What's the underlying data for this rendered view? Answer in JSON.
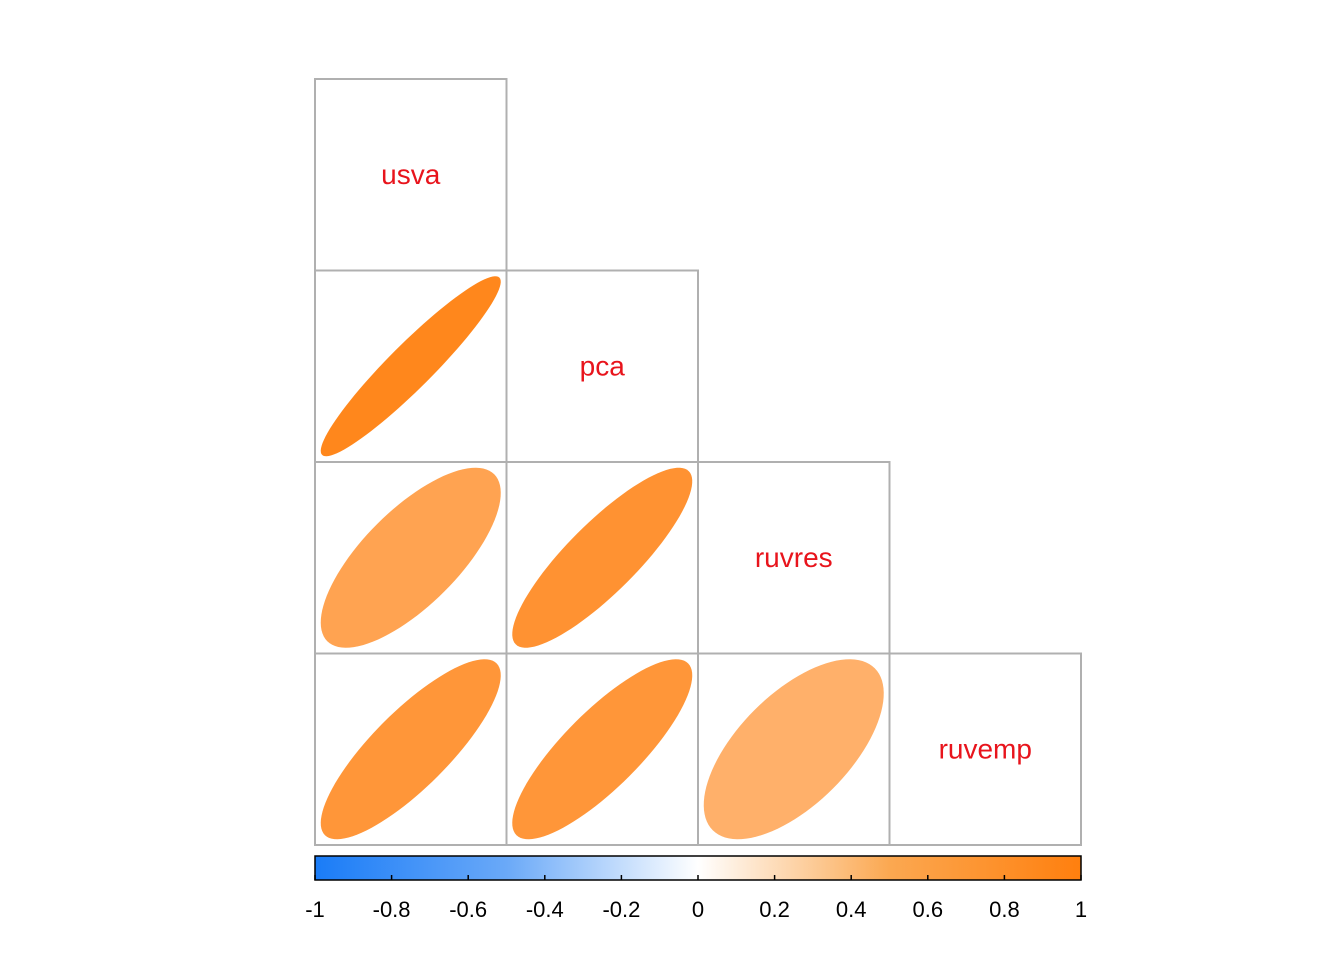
{
  "chart_data": {
    "type": "heatmap",
    "style": "correlation-ellipse-lower-triangle",
    "variables": [
      "usva",
      "pca",
      "ruvres",
      "ruvemp"
    ],
    "correlations": [
      {
        "row": "pca",
        "col": "usva",
        "value": 0.94
      },
      {
        "row": "ruvres",
        "col": "usva",
        "value": 0.72
      },
      {
        "row": "ruvres",
        "col": "pca",
        "value": 0.85
      },
      {
        "row": "ruvemp",
        "col": "usva",
        "value": 0.82
      },
      {
        "row": "ruvemp",
        "col": "pca",
        "value": 0.82
      },
      {
        "row": "ruvemp",
        "col": "ruvres",
        "value": 0.62
      }
    ],
    "colorbar": {
      "range": [
        -1,
        1
      ],
      "ticks": [
        "-1",
        "-0.8",
        "-0.6",
        "-0.4",
        "-0.2",
        "0",
        "0.2",
        "0.4",
        "0.6",
        "0.8",
        "1"
      ],
      "colors": {
        "negative": "#1a7cf7",
        "zero": "#ffffff",
        "positive": "#ff7f0e"
      }
    },
    "label_color": "#e8141c",
    "title": "",
    "xlabel": "",
    "ylabel": ""
  }
}
